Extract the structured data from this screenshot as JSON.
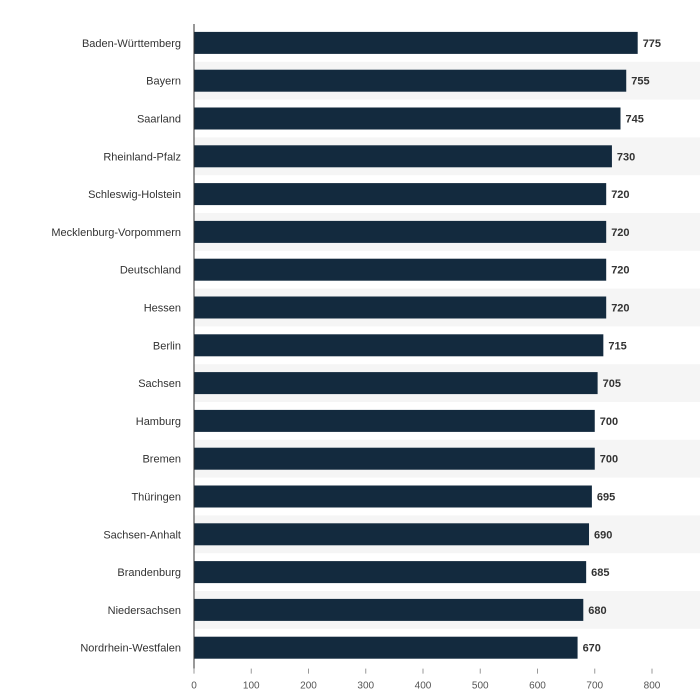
{
  "colors": {
    "bar": "#132a3e",
    "band": "#f5f5f5",
    "axis": "#333333",
    "grid": "#e6e6e6"
  },
  "chart_data": {
    "type": "bar",
    "orientation": "horizontal",
    "categories": [
      "Baden-Württemberg",
      "Bayern",
      "Saarland",
      "Rheinland-Pfalz",
      "Schleswig-Holstein",
      "Mecklenburg-Vorpommern",
      "Deutschland",
      "Hessen",
      "Berlin",
      "Sachsen",
      "Hamburg",
      "Bremen",
      "Thüringen",
      "Sachsen-Anhalt",
      "Brandenburg",
      "Niedersachsen",
      "Nordrhein-Westfalen"
    ],
    "values": [
      775,
      755,
      745,
      730,
      720,
      720,
      720,
      720,
      715,
      705,
      700,
      700,
      695,
      690,
      685,
      680,
      670
    ],
    "xlim": [
      0,
      900
    ],
    "xticks": [
      0,
      100,
      200,
      300,
      400,
      500,
      600,
      700,
      800,
      900
    ],
    "xlabel": "",
    "title": "",
    "data_labels": true,
    "grid": false
  }
}
